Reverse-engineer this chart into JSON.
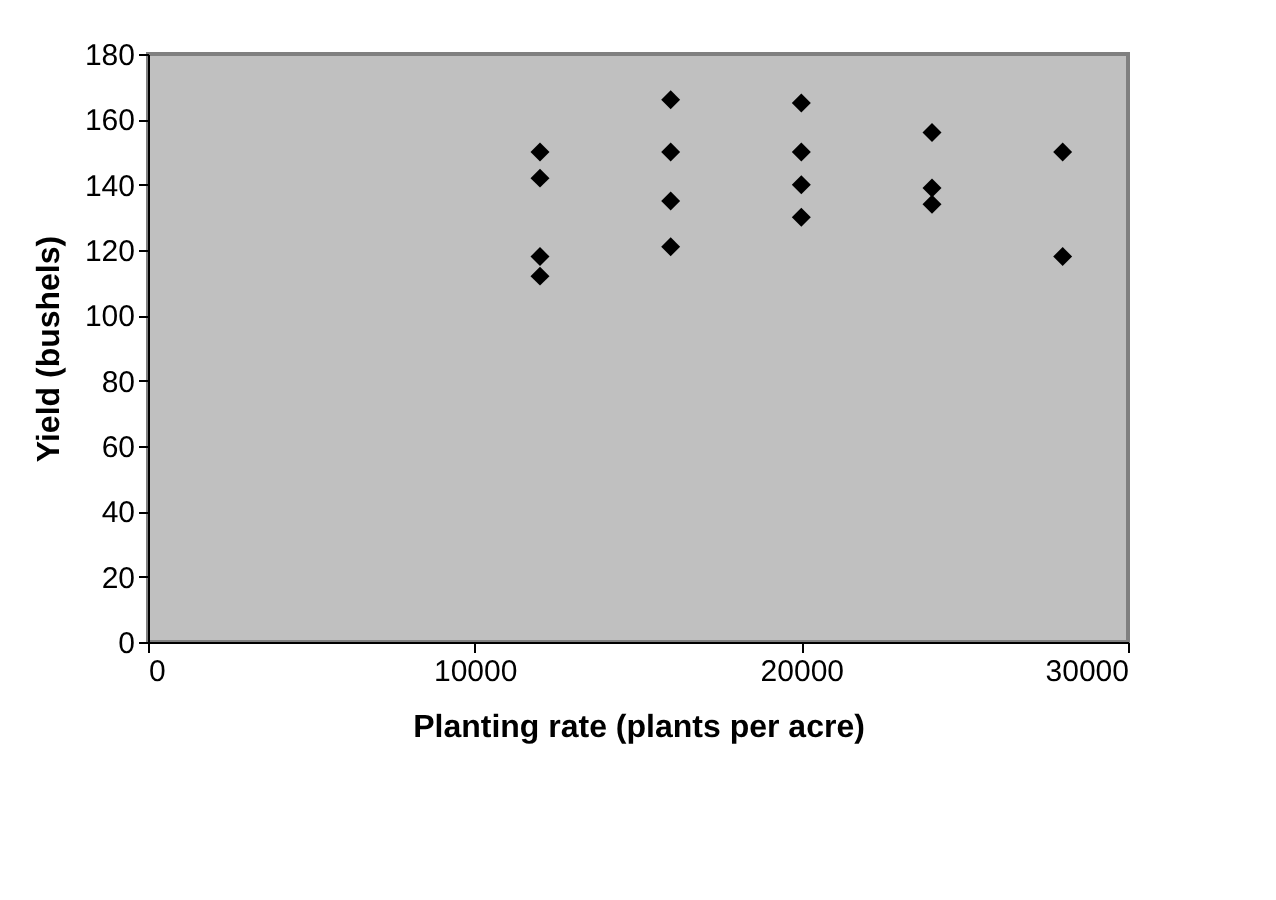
{
  "chart_data": {
    "type": "scatter",
    "xlabel": "Planting rate (plants per acre)",
    "ylabel": "Yield (bushels)",
    "series": [
      {
        "color": "#000000",
        "x": [
          12000,
          12000,
          12000,
          12000,
          16000,
          16000,
          16000,
          16000,
          20000,
          20000,
          20000,
          20000,
          24000,
          24000,
          24000,
          28000,
          28000
        ],
        "values": [
          150,
          142,
          118,
          112,
          166,
          150,
          135,
          121,
          165,
          150,
          140,
          130,
          156,
          139,
          134,
          150,
          118
        ]
      }
    ],
    "xlim": [
      0,
      30000
    ],
    "xticks": [
      0,
      10000,
      20000,
      30000
    ],
    "ylim": [
      0,
      180
    ],
    "yticks": [
      0,
      20,
      40,
      60,
      80,
      100,
      120,
      140,
      160,
      180
    ],
    "marker": "diamond",
    "grid": false
  }
}
